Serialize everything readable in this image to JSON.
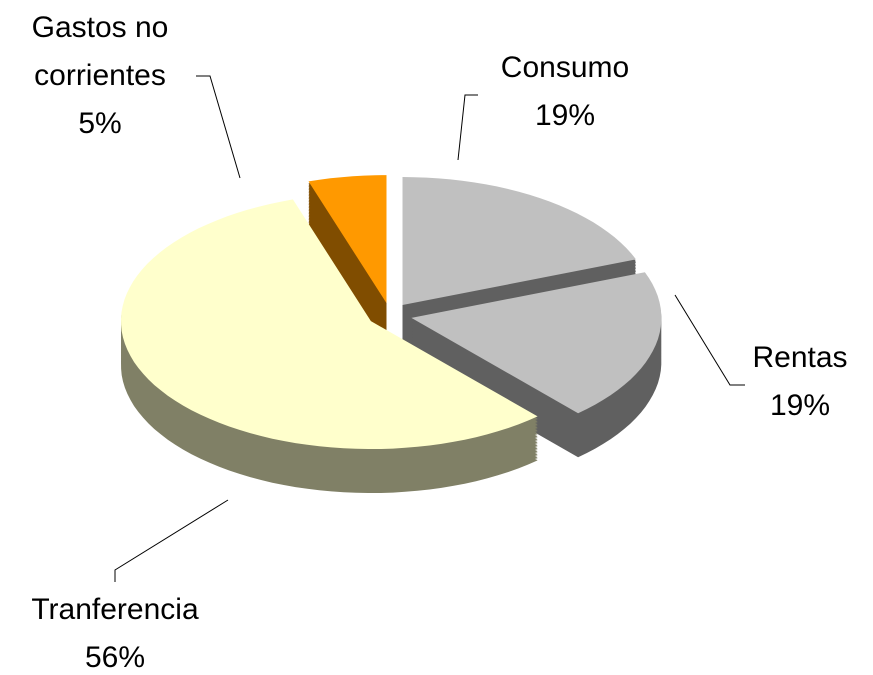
{
  "chart_data": {
    "type": "pie",
    "categories": [
      "Consumo",
      "Rentas",
      "Tranferencia",
      "Gastos no corrientes"
    ],
    "values": [
      19,
      19,
      56,
      5
    ],
    "value_labels": [
      "19%",
      "19%",
      "56%",
      "5%"
    ],
    "colors": [
      "#c0c0c0",
      "#c0c0c0",
      "#ffffcc",
      "#ff9900"
    ]
  }
}
